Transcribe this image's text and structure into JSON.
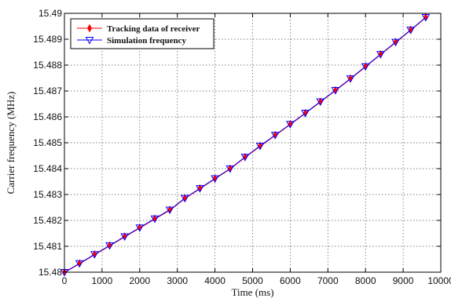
{
  "chart_data": {
    "type": "line",
    "title": "",
    "xlabel": "Time (ms)",
    "ylabel": "Carrier frequency (MHz)",
    "xlim": [
      0,
      10000
    ],
    "ylim": [
      15.48,
      15.49
    ],
    "grid": true,
    "grid_style": "dotted",
    "legend_position": "top-left",
    "x_ticks": [
      "0",
      "1000",
      "2000",
      "3000",
      "4000",
      "5000",
      "6000",
      "7000",
      "8000",
      "9000",
      "10000"
    ],
    "y_ticks": [
      "15.48",
      "15.481",
      "15.482",
      "15.483",
      "15.484",
      "15.485",
      "15.486",
      "15.487",
      "15.488",
      "15.489",
      "15.49"
    ],
    "x": [
      0,
      400,
      800,
      1200,
      1600,
      2000,
      2400,
      2800,
      3200,
      3600,
      4000,
      4400,
      4800,
      5200,
      5600,
      6000,
      6400,
      6800,
      7200,
      7600,
      8000,
      8400,
      8800,
      9200,
      9600
    ],
    "series": [
      {
        "name": "Tracking data of receiver",
        "color": "#ff0000",
        "marker": "diamond",
        "values": [
          15.48,
          15.48034,
          15.48069,
          15.48103,
          15.48138,
          15.48172,
          15.48207,
          15.48241,
          15.48286,
          15.48324,
          15.48362,
          15.484,
          15.48445,
          15.48488,
          15.4853,
          15.48572,
          15.48615,
          15.48659,
          15.48703,
          15.48748,
          15.48795,
          15.48842,
          15.48889,
          15.48936,
          15.48985
        ]
      },
      {
        "name": "Simulation frequency",
        "color": "#0000ff",
        "marker": "triangle-down",
        "values": [
          15.48,
          15.48034,
          15.48069,
          15.48103,
          15.48138,
          15.48172,
          15.48207,
          15.48241,
          15.48286,
          15.48324,
          15.48362,
          15.484,
          15.48445,
          15.48488,
          15.4853,
          15.48572,
          15.48615,
          15.48659,
          15.48703,
          15.48748,
          15.48795,
          15.48842,
          15.48889,
          15.48936,
          15.48985
        ]
      }
    ]
  }
}
